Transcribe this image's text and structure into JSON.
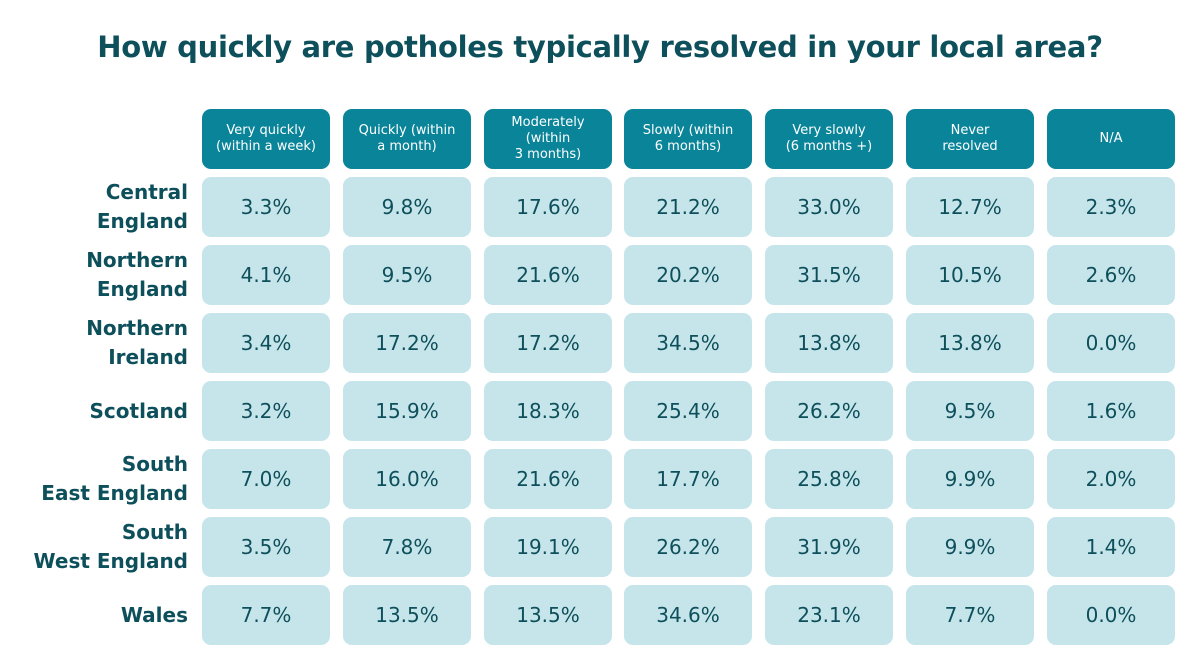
{
  "colors": {
    "title": "#0d4f5a",
    "header_bg": "#0a8499",
    "header_text": "#ffffff",
    "cell_bg": "#c6e5eb",
    "cell_text": "#0d4f5a"
  },
  "chart_data": {
    "type": "table",
    "title": "How quickly are potholes typically resolved in your local area?",
    "columns": [
      "Very quickly\n(within a week)",
      "Quickly (within\na month)",
      "Moderately\n(within\n3 months)",
      "Slowly (within\n6 months)",
      "Very slowly\n(6 months +)",
      "Never\nresolved",
      "N/A"
    ],
    "rows": [
      {
        "label": "Central\nEngland",
        "values": [
          "3.3%",
          "9.8%",
          "17.6%",
          "21.2%",
          "33.0%",
          "12.7%",
          "2.3%"
        ]
      },
      {
        "label": "Northern\nEngland",
        "values": [
          "4.1%",
          "9.5%",
          "21.6%",
          "20.2%",
          "31.5%",
          "10.5%",
          "2.6%"
        ]
      },
      {
        "label": "Northern\nIreland",
        "values": [
          "3.4%",
          "17.2%",
          "17.2%",
          "34.5%",
          "13.8%",
          "13.8%",
          "0.0%"
        ]
      },
      {
        "label": "Scotland",
        "values": [
          "3.2%",
          "15.9%",
          "18.3%",
          "25.4%",
          "26.2%",
          "9.5%",
          "1.6%"
        ]
      },
      {
        "label": "South\nEast England",
        "values": [
          "7.0%",
          "16.0%",
          "21.6%",
          "17.7%",
          "25.8%",
          "9.9%",
          "2.0%"
        ]
      },
      {
        "label": "South\nWest England",
        "values": [
          "3.5%",
          "7.8%",
          "19.1%",
          "26.2%",
          "31.9%",
          "9.9%",
          "1.4%"
        ]
      },
      {
        "label": "Wales",
        "values": [
          "7.7%",
          "13.5%",
          "13.5%",
          "34.6%",
          "23.1%",
          "7.7%",
          "0.0%"
        ]
      }
    ]
  }
}
